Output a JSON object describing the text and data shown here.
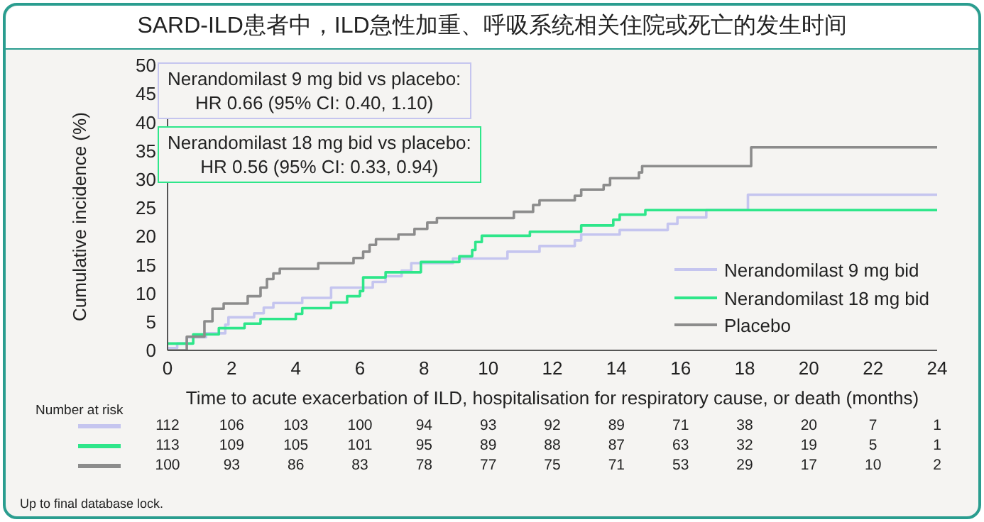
{
  "chart_data": {
    "type": "step",
    "title": "SARD-ILD患者中，ILD急性加重、呼吸系统相关住院或死亡的发生时间",
    "xlabel": "Time to acute exacerbation of ILD, hospitalisation for respiratory cause, or death (months)",
    "ylabel": "Cumulative incidence (%)",
    "xlim": [
      0,
      24
    ],
    "xticks": [
      0,
      2,
      4,
      6,
      8,
      10,
      12,
      14,
      16,
      18,
      20,
      22,
      24
    ],
    "ylim": [
      0,
      50
    ],
    "yticks": [
      0,
      5,
      10,
      15,
      20,
      25,
      30,
      35,
      40,
      45,
      50
    ],
    "grid": false,
    "legend": "bottom right",
    "marker": "none",
    "line_style": "solid",
    "series": [
      {
        "name": "Nerandomilast 9 mg bid",
        "color": "#c5c5ef",
        "x": [
          0,
          0.3,
          0.6,
          1.2,
          1.8,
          1.9,
          2.7,
          3,
          3.3,
          4.2,
          5.1,
          6.4,
          6.8,
          7.3,
          7.6,
          8.9,
          10.6,
          11.6,
          12.7,
          12.9,
          14.1,
          15.6,
          15.9,
          16.8,
          18.1,
          24
        ],
        "values": [
          0.4,
          1.2,
          2.3,
          3,
          4.5,
          5.8,
          6.5,
          7.5,
          8.3,
          9.2,
          11,
          12,
          13,
          14,
          15.3,
          16.1,
          17.3,
          18.3,
          19.3,
          20.3,
          21.1,
          22.2,
          23.3,
          24.6,
          27.3,
          27.3
        ]
      },
      {
        "name": "Nerandomilast 18 mg bid",
        "color": "#2ee68a",
        "x": [
          0,
          0.8,
          1.6,
          2.4,
          2.9,
          4,
          4.2,
          5.1,
          5.6,
          6,
          6.1,
          6.8,
          7.9,
          9.1,
          9.5,
          9.6,
          9.8,
          11.3,
          12.9,
          13.9,
          14.1,
          14.9,
          24
        ],
        "values": [
          1.2,
          2.8,
          3.9,
          4.7,
          5.5,
          6.4,
          7.4,
          8.4,
          9.5,
          10.4,
          12.8,
          13.7,
          15.5,
          16.5,
          17.6,
          19,
          20.1,
          20.8,
          21.9,
          22.9,
          23.8,
          24.6,
          24.6
        ]
      },
      {
        "name": "Placebo",
        "color": "#8c8c8c",
        "x": [
          0,
          0.6,
          1.15,
          1.4,
          1.75,
          2.5,
          2.9,
          3.1,
          3.3,
          3.5,
          4.7,
          5.8,
          6.1,
          6.3,
          6.5,
          7.2,
          7.7,
          8.1,
          8.4,
          10.8,
          11.4,
          11.6,
          12.7,
          12.9,
          13.6,
          13.8,
          14.7,
          14.8,
          18.2,
          24
        ],
        "values": [
          0,
          2.4,
          5.1,
          7.3,
          8.2,
          9.5,
          11,
          12.5,
          13.5,
          14.3,
          15.3,
          16.2,
          17.3,
          18.5,
          19.5,
          20.3,
          21.3,
          22.4,
          23.2,
          24.3,
          25.5,
          26.3,
          27.1,
          28.2,
          29,
          30.2,
          31.2,
          32.3,
          35.6,
          35.6
        ]
      }
    ],
    "annotations": [
      "Nerandomilast 9 mg bid vs placebo:\nHR 0.66 (95% CI: 0.40, 1.10)",
      "Nerandomilast 18 mg bid vs placebo:\nHR 0.56 (95% CI: 0.33, 0.94)",
      "Number at risk",
      "112 106 103 100 94 93 92 89 71 38 20 7 1",
      "113 109 105 101 95 89 88 87 63 32 19 5 1",
      "100 93 86 83 78 77 75 71 53 29 17 10 2",
      "Up to final database lock."
    ]
  }
}
